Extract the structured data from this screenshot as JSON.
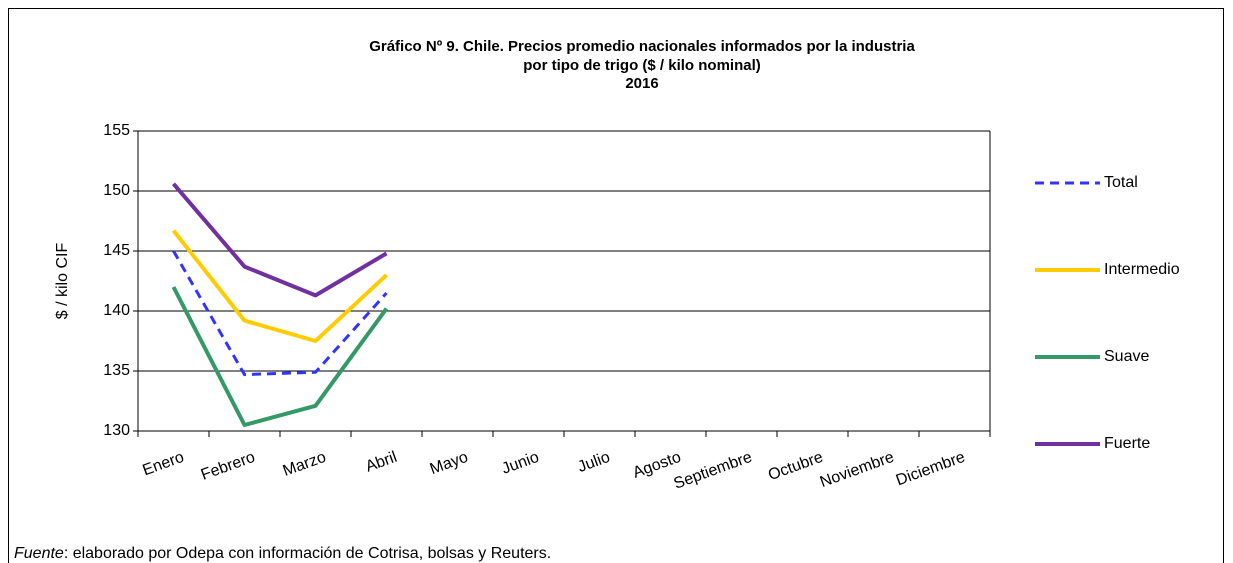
{
  "chart_data": {
    "type": "line",
    "title": [
      "Gráfico Nº 9. Chile. Precios promedio nacionales informados por la industria",
      "por tipo de trigo ($ / kilo nominal)",
      "2016"
    ],
    "ylabel": "$ / kilo CIF",
    "categories": [
      "Enero",
      "Febrero",
      "Marzo",
      "Abril",
      "Mayo",
      "Junio",
      "Julio",
      "Agosto",
      "Septiembre",
      "Octubre",
      "Noviembre",
      "Diciembre"
    ],
    "series": [
      {
        "name": "Total",
        "color": "#3333ff",
        "dashed": true,
        "values": [
          145,
          134.7,
          134.9,
          141.5,
          null,
          null,
          null,
          null,
          null,
          null,
          null,
          null
        ]
      },
      {
        "name": "Intermedio",
        "color": "#ffcc00",
        "values": [
          146.7,
          139.2,
          137.5,
          143,
          null,
          null,
          null,
          null,
          null,
          null,
          null,
          null
        ]
      },
      {
        "name": "Suave",
        "color": "#339966",
        "values": [
          142,
          130.5,
          132.1,
          140.2,
          null,
          null,
          null,
          null,
          null,
          null,
          null,
          null
        ]
      },
      {
        "name": "Fuerte",
        "color": "#7030a0",
        "values": [
          150.6,
          143.7,
          141.3,
          144.8,
          null,
          null,
          null,
          null,
          null,
          null,
          null,
          null
        ]
      }
    ],
    "ylim": [
      130,
      155
    ],
    "yticks": [
      130,
      135,
      140,
      145,
      150,
      155
    ],
    "grid": true,
    "legend": "right",
    "source_label": "Fuente",
    "source_text": ": elaborado por Odepa con información de Cotrisa, bolsas y Reuters."
  }
}
